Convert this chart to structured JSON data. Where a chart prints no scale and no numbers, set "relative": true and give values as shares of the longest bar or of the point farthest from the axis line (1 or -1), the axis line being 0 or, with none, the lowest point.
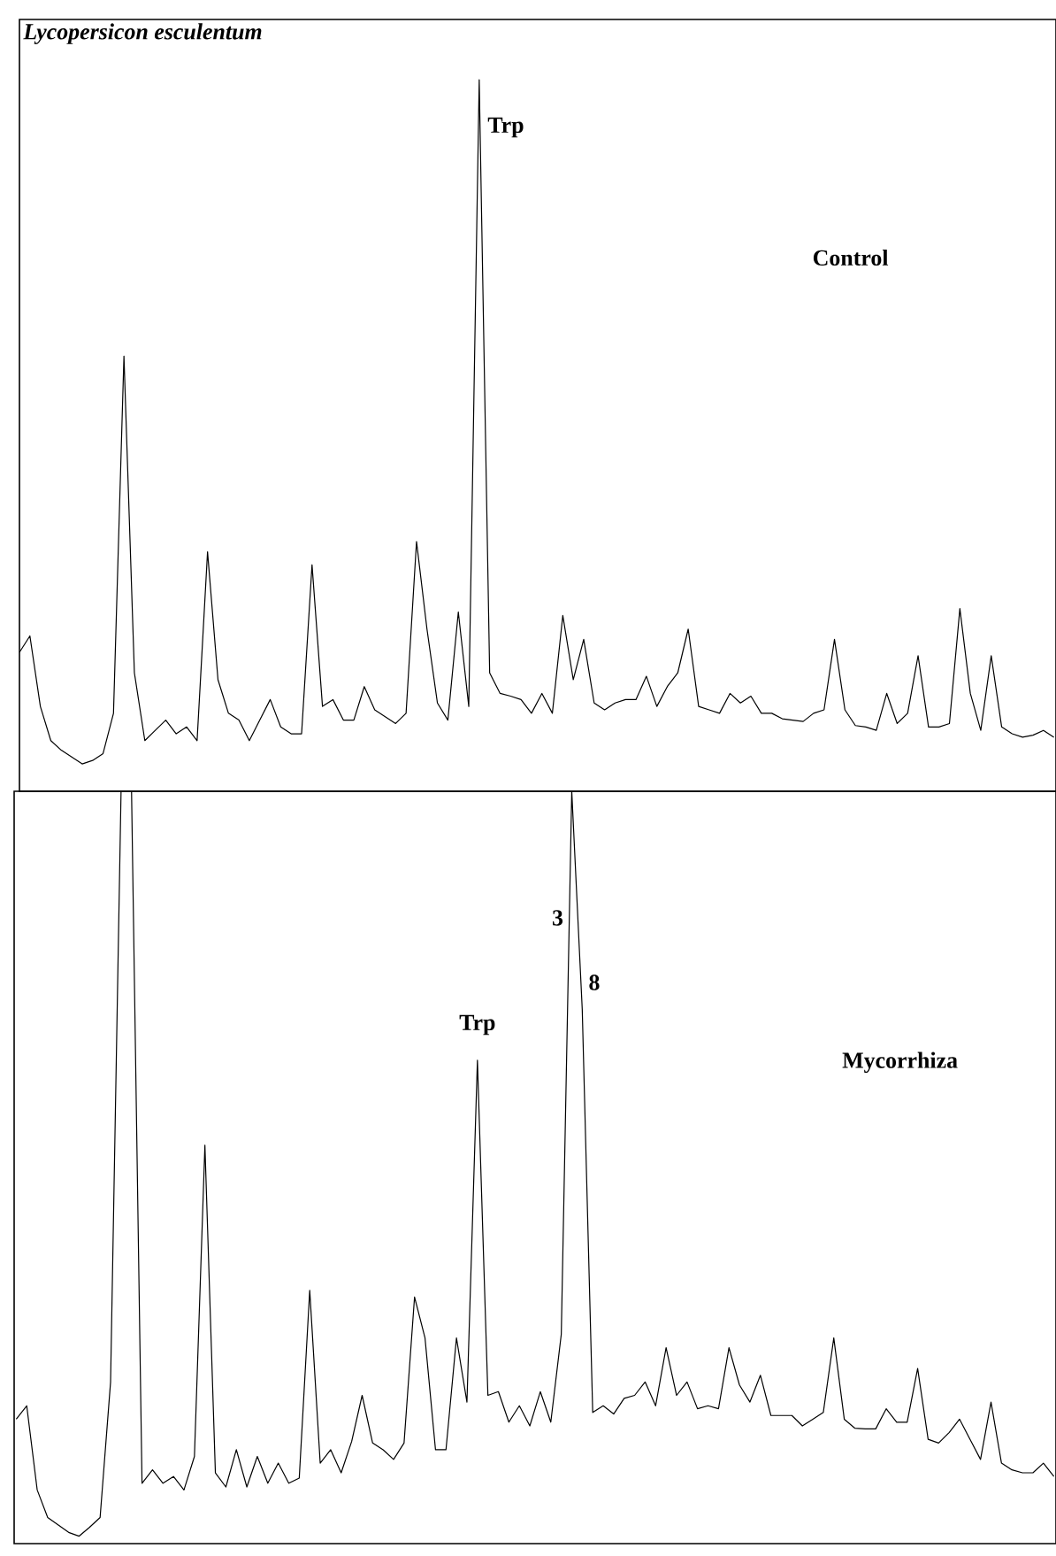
{
  "chart_data": [
    {
      "type": "line",
      "relative": true,
      "title": "Lycopersicon esculentum",
      "categories": [
        null,
        null,
        null,
        null,
        null,
        null,
        null,
        null,
        null,
        null,
        null,
        null,
        null,
        null,
        null,
        null,
        null,
        null,
        null,
        null,
        null,
        null,
        null,
        null,
        null,
        null,
        null,
        null,
        null,
        null,
        null,
        null,
        null,
        null,
        null,
        null,
        null,
        null,
        null,
        null,
        null,
        null,
        null,
        null,
        null,
        null,
        null,
        null,
        null,
        null,
        null,
        null,
        null,
        null,
        null,
        null,
        null,
        null,
        null,
        null,
        null,
        null,
        null,
        null,
        null,
        null,
        null,
        null,
        null,
        null,
        null,
        null,
        null,
        null,
        null,
        null,
        null,
        null,
        null,
        null,
        null,
        null,
        null,
        null,
        null,
        null,
        null,
        null,
        null,
        null,
        null,
        null,
        null,
        null,
        null,
        null,
        null,
        null,
        null,
        null
      ],
      "series": [
        {
          "name": "Control",
          "color": "#000000",
          "values": [
            0.163,
            0.187,
            0.084,
            0.034,
            0.02,
            0.01,
            0,
            0.005,
            0.015,
            0.074,
            0.596,
            0.133,
            0.034,
            0.049,
            0.064,
            0.044,
            0.054,
            0.034,
            0.31,
            0.123,
            0.074,
            0.064,
            0.034,
            0.064,
            0.094,
            0.054,
            0.044,
            0.044,
            0.291,
            0.084,
            0.094,
            0.064,
            0.064,
            0.113,
            0.079,
            0.069,
            0.059,
            0.074,
            0.325,
            0.197,
            0.089,
            0.064,
            0.222,
            0.084,
            1.0,
            0.133,
            0.103,
            0.099,
            0.094,
            0.074,
            0.103,
            0.074,
            0.217,
            0.123,
            0.182,
            0.089,
            0.079,
            0.089,
            0.094,
            0.094,
            0.128,
            0.084,
            0.113,
            0.133,
            0.197,
            0.084,
            0.079,
            0.074,
            0.103,
            0.089,
            0.099,
            0.074,
            0.074,
            0.066,
            0.064,
            0.062,
            0.074,
            0.079,
            0.182,
            0.079,
            0.056,
            0.054,
            0.049,
            0.103,
            0.059,
            0.074,
            0.158,
            0.054,
            0.054,
            0.059,
            0.227,
            0.103,
            0.049,
            0.158,
            0.054,
            0.044,
            0.039,
            0.042,
            0.049,
            0.039
          ]
        }
      ],
      "annotations": [
        "Trp"
      ]
    },
    {
      "type": "line",
      "relative": true,
      "categories": [
        null,
        null,
        null,
        null,
        null,
        null,
        null,
        null,
        null,
        null,
        null,
        null,
        null,
        null,
        null,
        null,
        null,
        null,
        null,
        null,
        null,
        null,
        null,
        null,
        null,
        null,
        null,
        null,
        null,
        null,
        null,
        null,
        null,
        null,
        null,
        null,
        null,
        null,
        null,
        null,
        null,
        null,
        null,
        null,
        null,
        null,
        null,
        null,
        null,
        null,
        null,
        null,
        null,
        null,
        null,
        null,
        null,
        null,
        null,
        null,
        null,
        null,
        null,
        null,
        null,
        null,
        null,
        null,
        null,
        null,
        null,
        null,
        null,
        null,
        null,
        null,
        null,
        null,
        null,
        null,
        null,
        null,
        null,
        null,
        null,
        null,
        null,
        null,
        null,
        null,
        null,
        null,
        null,
        null,
        null,
        null,
        null,
        null,
        null,
        null
      ],
      "series": [
        {
          "name": "Mycorrhiza",
          "color": "#000000",
          "values": [
            0.157,
            0.175,
            0.062,
            0.025,
            0.015,
            0.005,
            0,
            0.012,
            0.025,
            0.207,
            1.0,
            1.0,
            0.071,
            0.089,
            0.071,
            0.08,
            0.062,
            0.107,
            0.525,
            0.085,
            0.066,
            0.116,
            0.066,
            0.107,
            0.071,
            0.098,
            0.071,
            0.078,
            0.33,
            0.098,
            0.116,
            0.085,
            0.127,
            0.189,
            0.125,
            0.116,
            0.103,
            0.125,
            0.321,
            0.266,
            0.116,
            0.116,
            0.266,
            0.18,
            0.639,
            0.189,
            0.194,
            0.153,
            0.175,
            0.148,
            0.194,
            0.153,
            0.271,
            1.0,
            0.707,
            0.166,
            0.175,
            0.164,
            0.185,
            0.189,
            0.207,
            0.175,
            0.253,
            0.189,
            0.207,
            0.171,
            0.175,
            0.171,
            0.253,
            0.203,
            0.18,
            0.216,
            0.162,
            0.162,
            0.162,
            0.148,
            0.157,
            0.166,
            0.266,
            0.157,
            0.145,
            0.144,
            0.144,
            0.171,
            0.153,
            0.153,
            0.225,
            0.13,
            0.125,
            0.139,
            0.157,
            0.13,
            0.103,
            0.18,
            0.098,
            0.089,
            0.085,
            0.085,
            0.098,
            0.08
          ]
        }
      ],
      "annotations": [
        "Trp",
        "3",
        "8"
      ]
    }
  ]
}
